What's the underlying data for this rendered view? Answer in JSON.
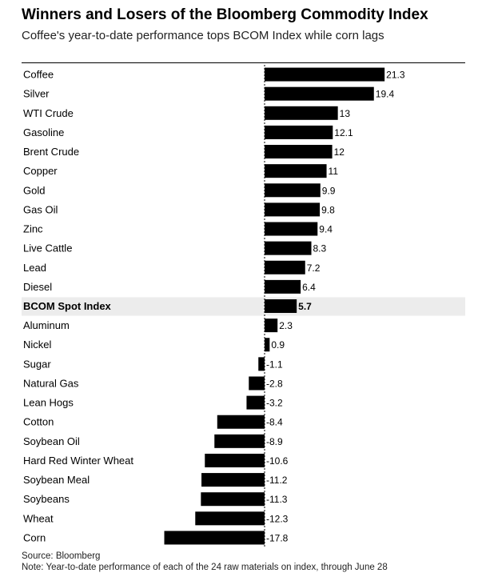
{
  "header": {
    "title": "Winners and Losers of the Bloomberg Commodity Index",
    "subtitle": "Coffee's year-to-date performance tops BCOM Index while corn lags"
  },
  "footer": {
    "source": "Source: Bloomberg",
    "note": "Note: Year-to-date performance of each of the 24 raw materials on index, through June 28"
  },
  "colors": {
    "bar": "#000000",
    "highlight_row": "#ececec",
    "text": "#000000"
  },
  "chart_data": {
    "type": "bar",
    "orientation": "horizontal",
    "title": "Winners and Losers of the Bloomberg Commodity Index",
    "subtitle": "Coffee's year-to-date performance tops BCOM Index while corn lags",
    "categories": [
      "Coffee",
      "Silver",
      "WTI Crude",
      "Gasoline",
      "Brent Crude",
      "Copper",
      "Gold",
      "Gas Oil",
      "Zinc",
      "Live Cattle",
      "Lead",
      "Diesel",
      "BCOM Spot Index",
      "Aluminum",
      "Nickel",
      "Sugar",
      "Natural Gas",
      "Lean Hogs",
      "Cotton",
      "Soybean Oil",
      "Hard Red Winter Wheat",
      "Soybean Meal",
      "Soybeans",
      "Wheat",
      "Corn"
    ],
    "values": [
      21.3,
      19.4,
      13,
      12.1,
      12,
      11,
      9.9,
      9.8,
      9.4,
      8.3,
      7.2,
      6.4,
      5.7,
      2.3,
      0.9,
      -1.1,
      -2.8,
      -3.2,
      -8.4,
      -8.9,
      -10.6,
      -11.2,
      -11.3,
      -12.3,
      -17.8
    ],
    "value_labels": [
      "21.3",
      "19.4",
      "13",
      "12.1",
      "12",
      "11",
      "9.9",
      "9.8",
      "9.4",
      "8.3",
      "7.2",
      "6.4",
      "5.7",
      "2.3",
      "0.9",
      "-1.1",
      "-2.8",
      "-3.2",
      "-8.4",
      "-8.9",
      "-10.6",
      "-11.2",
      "-11.3",
      "-12.3",
      "-17.8"
    ],
    "highlight": "BCOM Spot Index",
    "xlim": [
      -17.8,
      21.3
    ],
    "grid": false,
    "legend": "none"
  }
}
